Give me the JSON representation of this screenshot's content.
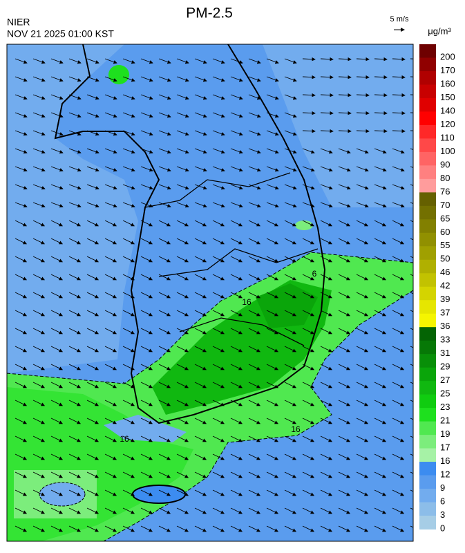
{
  "header": {
    "title": "PM-2.5",
    "agency": "NIER",
    "datetime": "NOV 21 2025 01:00 KST",
    "wind_scale": "5 m/s",
    "unit": "μg/m³"
  },
  "colorbar": {
    "labels": [
      200,
      170,
      160,
      150,
      140,
      120,
      110,
      100,
      90,
      80,
      76,
      70,
      65,
      60,
      55,
      50,
      46,
      42,
      39,
      37,
      36,
      33,
      31,
      29,
      27,
      25,
      23,
      21,
      19,
      17,
      16,
      12,
      9,
      6,
      3,
      0
    ],
    "colors": [
      "#6e0000",
      "#900000",
      "#b00000",
      "#c80000",
      "#e00000",
      "#ff0000",
      "#ff2828",
      "#ff4848",
      "#ff6464",
      "#ff8080",
      "#ff9c9c",
      "#656000",
      "#737000",
      "#828000",
      "#919000",
      "#a0a000",
      "#b0b000",
      "#c2c200",
      "#d4d400",
      "#e6e600",
      "#f5f500",
      "#046404",
      "#067806",
      "#088f08",
      "#0aa50a",
      "#10b810",
      "#10cc10",
      "#1ee01e",
      "#50e850",
      "#7ced7c",
      "#a6f2a6",
      "#3c8cf0",
      "#5a9cee",
      "#72acee",
      "#8cbde9",
      "#a6cde6"
    ]
  },
  "contour_labels": [
    "16",
    "16",
    "16",
    "6"
  ]
}
